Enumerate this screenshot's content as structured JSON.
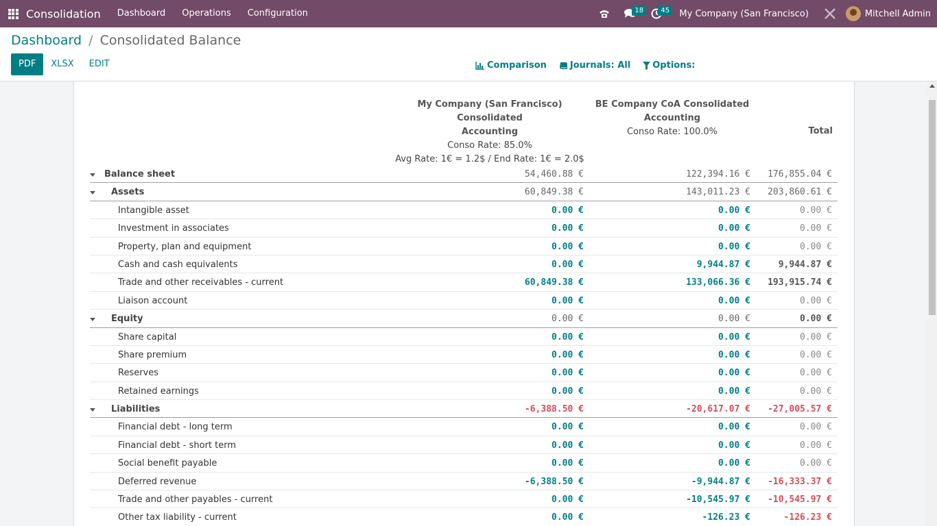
{
  "navbar": {
    "app_name": "Consolidation",
    "menu": [
      "Dashboard",
      "Operations",
      "Configuration"
    ],
    "messages_count": "18",
    "activities_count": "45",
    "company": "My Company (San Francisco)",
    "user": "Mitchell Admin",
    "color": "#714b67"
  },
  "breadcrumb": {
    "parent": "Dashboard",
    "separator": "/",
    "current": "Consolidated Balance"
  },
  "buttons": {
    "pdf": "PDF",
    "xlsx": "XLSX",
    "edit": "EDIT"
  },
  "filters": {
    "comparison": "Comparison",
    "journals": "Journals: All",
    "options": "Options:"
  },
  "columns": {
    "col1_title_1": "My Company (San Francisco) Consolidated",
    "col1_title_2": "Accounting",
    "col1_rate": "Conso Rate: 85.0%",
    "col1_fx": "Avg Rate: 1€ = 1.2$ / End Rate: 1€ = 2.0$",
    "col2_title_1": "BE Company CoA Consolidated",
    "col2_title_2": "Accounting",
    "col2_rate": "Conso Rate: 100.0%",
    "col3_title": "Total"
  },
  "rows": [
    {
      "label": "Balance sheet",
      "level": 0,
      "section": true,
      "v1": "54,460.88 €",
      "v2": "122,394.16 €",
      "v3": "176,855.04 €",
      "s1": "dark-n",
      "s2": "dark-n",
      "s3": "dark-n"
    },
    {
      "label": "Assets",
      "level": 1,
      "section": true,
      "v1": "60,849.38 €",
      "v2": "143,011.23 €",
      "v3": "203,860.61 €",
      "s1": "dark-n",
      "s2": "dark-n",
      "s3": "dark-n"
    },
    {
      "label": "Intangible asset",
      "level": 2,
      "section": false,
      "v1": "0.00 €",
      "v2": "0.00 €",
      "v3": "0.00 €",
      "s1": "teal",
      "s2": "teal",
      "s3": "grey"
    },
    {
      "label": "Investment in associates",
      "level": 2,
      "section": false,
      "v1": "0.00 €",
      "v2": "0.00 €",
      "v3": "0.00 €",
      "s1": "teal",
      "s2": "teal",
      "s3": "grey"
    },
    {
      "label": "Property, plan and equipment",
      "level": 2,
      "section": false,
      "v1": "0.00 €",
      "v2": "0.00 €",
      "v3": "0.00 €",
      "s1": "teal",
      "s2": "teal",
      "s3": "grey"
    },
    {
      "label": "Cash and cash equivalents",
      "level": 2,
      "section": false,
      "v1": "0.00 €",
      "v2": "9,944.87 €",
      "v3": "9,944.87 €",
      "s1": "teal",
      "s2": "teal",
      "s3": "dark"
    },
    {
      "label": "Trade and other receivables - current",
      "level": 2,
      "section": false,
      "v1": "60,849.38 €",
      "v2": "133,066.36 €",
      "v3": "193,915.74 €",
      "s1": "teal",
      "s2": "teal",
      "s3": "dark"
    },
    {
      "label": "Liaison account",
      "level": 2,
      "section": false,
      "v1": "0.00 €",
      "v2": "0.00 €",
      "v3": "0.00 €",
      "s1": "teal",
      "s2": "teal",
      "s3": "grey"
    },
    {
      "label": "Equity",
      "level": 1,
      "section": true,
      "v1": "0.00 €",
      "v2": "0.00 €",
      "v3": "0.00 €",
      "s1": "dark-n",
      "s2": "dark-n",
      "s3": "dark"
    },
    {
      "label": "Share capital",
      "level": 2,
      "section": false,
      "v1": "0.00 €",
      "v2": "0.00 €",
      "v3": "0.00 €",
      "s1": "teal",
      "s2": "teal",
      "s3": "grey"
    },
    {
      "label": "Share premium",
      "level": 2,
      "section": false,
      "v1": "0.00 €",
      "v2": "0.00 €",
      "v3": "0.00 €",
      "s1": "teal",
      "s2": "teal",
      "s3": "grey"
    },
    {
      "label": "Reserves",
      "level": 2,
      "section": false,
      "v1": "0.00 €",
      "v2": "0.00 €",
      "v3": "0.00 €",
      "s1": "teal",
      "s2": "teal",
      "s3": "grey"
    },
    {
      "label": "Retained earnings",
      "level": 2,
      "section": false,
      "v1": "0.00 €",
      "v2": "0.00 €",
      "v3": "0.00 €",
      "s1": "teal",
      "s2": "teal",
      "s3": "grey"
    },
    {
      "label": "Liabilities",
      "level": 1,
      "section": true,
      "v1": "-6,388.50 €",
      "v2": "-20,617.07 €",
      "v3": "-27,005.57 €",
      "s1": "red",
      "s2": "red",
      "s3": "red"
    },
    {
      "label": "Financial debt - long term",
      "level": 2,
      "section": false,
      "v1": "0.00 €",
      "v2": "0.00 €",
      "v3": "0.00 €",
      "s1": "teal",
      "s2": "teal",
      "s3": "grey"
    },
    {
      "label": "Financial debt - short term",
      "level": 2,
      "section": false,
      "v1": "0.00 €",
      "v2": "0.00 €",
      "v3": "0.00 €",
      "s1": "teal",
      "s2": "teal",
      "s3": "grey"
    },
    {
      "label": "Social benefit payable",
      "level": 2,
      "section": false,
      "v1": "0.00 €",
      "v2": "0.00 €",
      "v3": "0.00 €",
      "s1": "teal",
      "s2": "teal",
      "s3": "grey"
    },
    {
      "label": "Deferred revenue",
      "level": 2,
      "section": false,
      "v1": "-6,388.50 €",
      "v2": "-9,944.87 €",
      "v3": "-16,333.37 €",
      "s1": "teal",
      "s2": "teal",
      "s3": "red"
    },
    {
      "label": "Trade and other payables - current",
      "level": 2,
      "section": false,
      "v1": "0.00 €",
      "v2": "-10,545.97 €",
      "v3": "-10,545.97 €",
      "s1": "teal",
      "s2": "teal",
      "s3": "red"
    },
    {
      "label": "Other tax liability - current",
      "level": 2,
      "section": false,
      "v1": "0.00 €",
      "v2": "-126.23 €",
      "v3": "-126.23 €",
      "s1": "teal",
      "s2": "teal",
      "s3": "red"
    }
  ]
}
